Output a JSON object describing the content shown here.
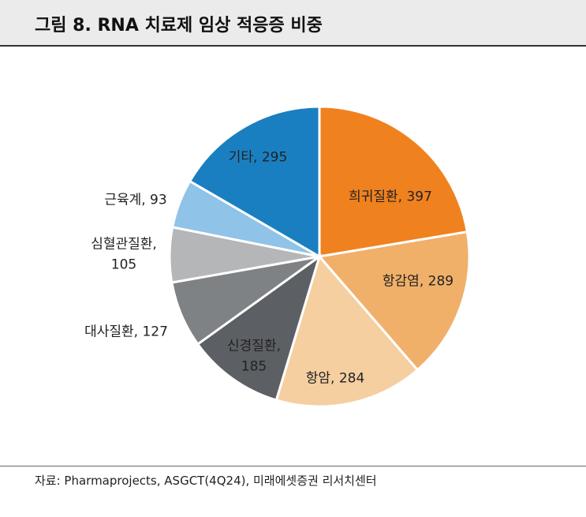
{
  "chart_data": {
    "type": "pie",
    "title": "그림 8. RNA 치료제 임상 적응증 비중",
    "categories": [
      "희귀질환",
      "항감염",
      "항암",
      "신경질환",
      "대사질환",
      "심혈관질환",
      "근육계",
      "기타"
    ],
    "values": [
      397,
      289,
      284,
      185,
      127,
      105,
      93,
      295
    ],
    "value_labels": [
      "희귀질환, 397",
      "항감염, 289",
      "항암, 284",
      "신경질환, 185",
      "대사질환, 127",
      "심혈관질환, 105",
      "근육계, 93",
      "기타, 295"
    ],
    "colors": [
      "#f0811f",
      "#f0b06a",
      "#f5cfa0",
      "#5c5f63",
      "#7f8285",
      "#b5b6b8",
      "#8fc3e8",
      "#1a7fc0"
    ],
    "source": "자료: Pharmaprojects, ASGCT(4Q24), 미래에셋증권 리서치센터"
  }
}
